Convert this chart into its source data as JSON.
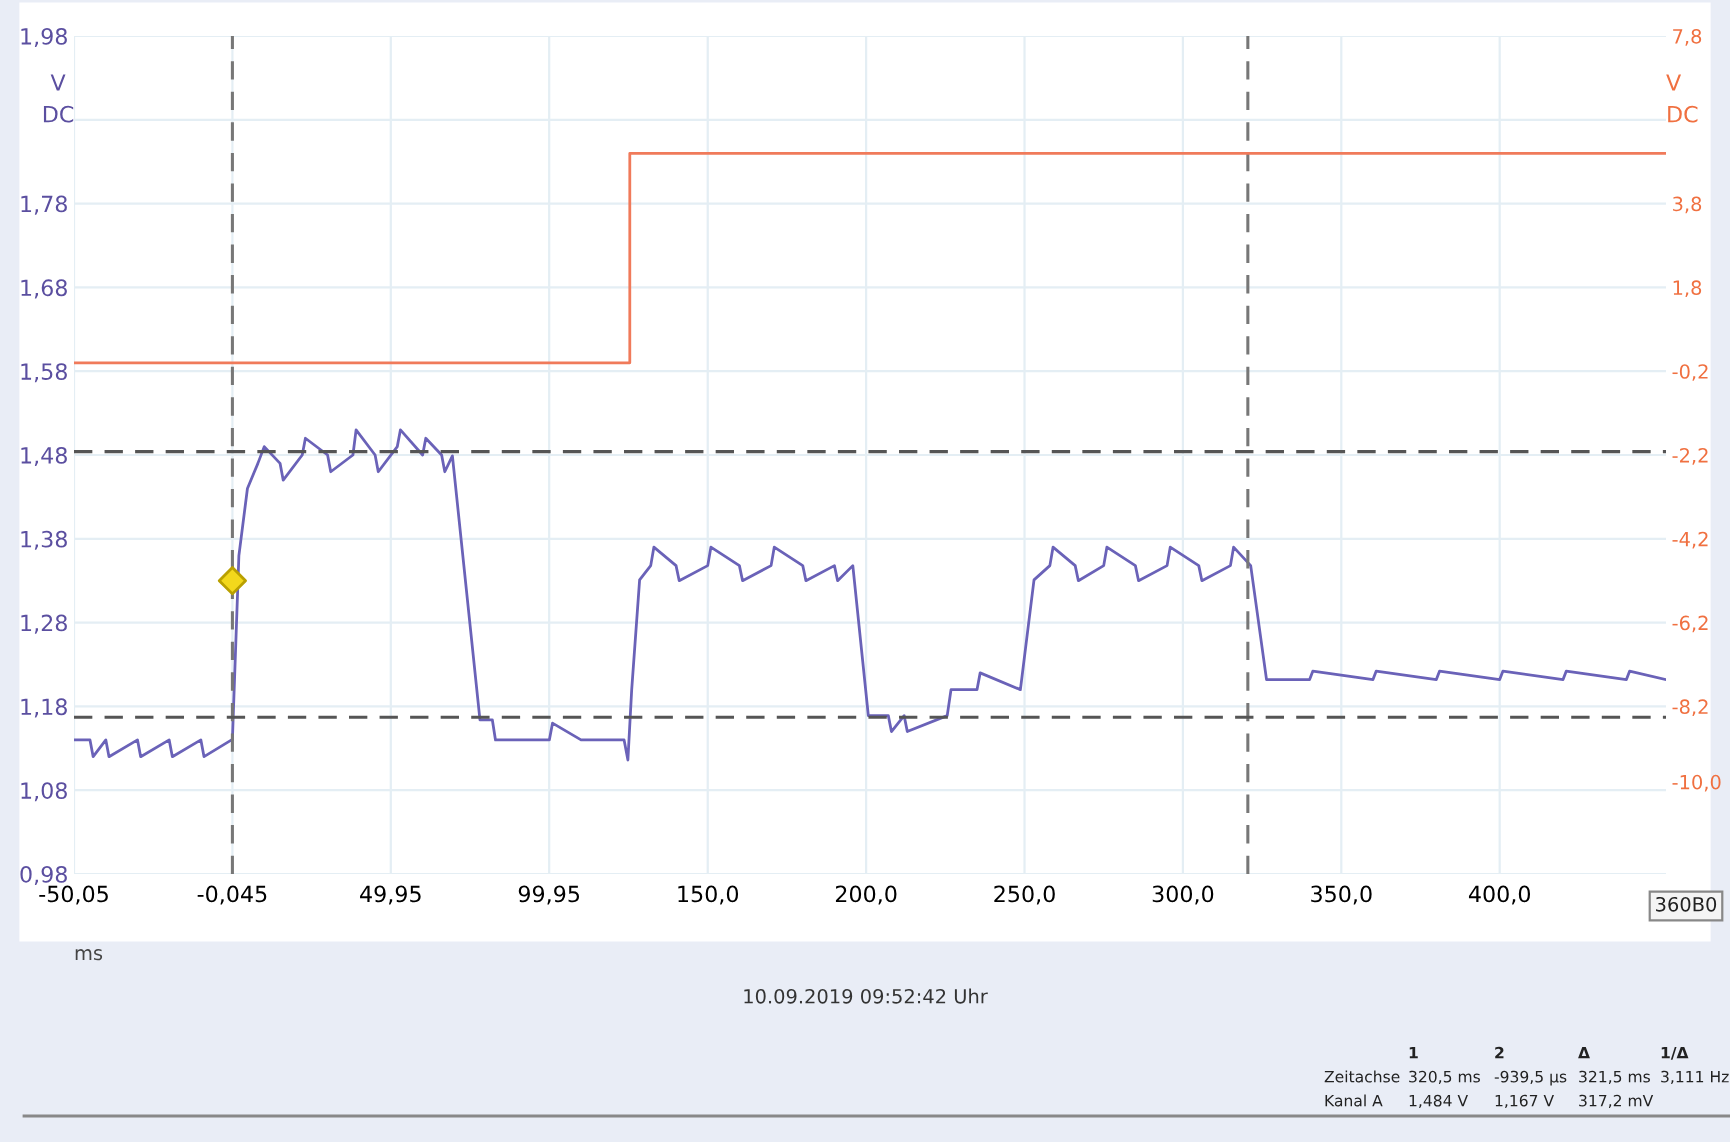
{
  "chart_data": {
    "type": "line",
    "xlabel": "ms",
    "ylabel": "V\nDC",
    "y2label": "V\nDC",
    "xlim": [
      -50.05,
      452.5
    ],
    "xticks": [
      {
        "value": -50.05,
        "label": "-50,05"
      },
      {
        "value": -0.045,
        "label": "-0,045"
      },
      {
        "value": 49.95,
        "label": "49,95"
      },
      {
        "value": 99.95,
        "label": "99,95"
      },
      {
        "value": 150.0,
        "label": "150,0"
      },
      {
        "value": 200.0,
        "label": "200,0"
      },
      {
        "value": 250.0,
        "label": "250,0"
      },
      {
        "value": 300.0,
        "label": "300,0"
      },
      {
        "value": 350.0,
        "label": "350,0"
      },
      {
        "value": 400.0,
        "label": "400,0"
      }
    ],
    "ylim": [
      0.98,
      1.98
    ],
    "yticks": [
      {
        "value": 0.98,
        "label": "0,98"
      },
      {
        "value": 1.08,
        "label": "1,08"
      },
      {
        "value": 1.18,
        "label": "1,18"
      },
      {
        "value": 1.28,
        "label": "1,28"
      },
      {
        "value": 1.38,
        "label": "1,38"
      },
      {
        "value": 1.48,
        "label": "1,48"
      },
      {
        "value": 1.58,
        "label": "1,58"
      },
      {
        "value": 1.68,
        "label": "1,68"
      },
      {
        "value": 1.78,
        "label": "1,78"
      },
      {
        "value": 1.88,
        "label": null
      },
      {
        "value": 1.98,
        "label": "1,98"
      }
    ],
    "y2lim": [
      -12.2,
      7.8
    ],
    "y2ticks": [
      {
        "value": -10.0,
        "label": "-10,0"
      },
      {
        "value": -8.2,
        "label": "-8,2"
      },
      {
        "value": -6.2,
        "label": "-6,2"
      },
      {
        "value": -4.2,
        "label": "-4,2"
      },
      {
        "value": -2.2,
        "label": "-2,2"
      },
      {
        "value": -0.2,
        "label": "-0,2"
      },
      {
        "value": 1.8,
        "label": "1,8"
      },
      {
        "value": 3.8,
        "label": "3,8"
      },
      {
        "value": 5.8,
        "label": null
      },
      {
        "value": 7.8,
        "label": "7,8"
      }
    ],
    "grid": true,
    "marker": "none",
    "line_style": "solid",
    "legend": false,
    "series": [
      {
        "color": "#6a62b8",
        "x": [
          -50.05,
          -45,
          -44,
          -40,
          -39,
          -30,
          -29,
          -20,
          -19,
          -10,
          -9,
          -0.3,
          -0.05,
          2,
          4.7,
          8,
          10,
          15,
          16,
          22,
          23,
          30,
          31,
          38,
          39,
          45,
          46,
          52,
          53,
          60,
          61,
          66,
          67,
          69.4,
          78.1,
          82,
          83,
          87.5,
          100,
          101,
          110,
          111,
          123.6,
          124.8,
          126,
          128.5,
          132,
          133,
          140,
          141,
          150,
          151,
          160,
          161,
          170,
          171,
          180,
          181,
          190,
          191,
          195.8,
          200.7,
          207,
          208,
          212,
          213,
          225.6,
          226.8,
          235,
          236,
          248.7,
          253,
          258,
          259,
          266,
          267,
          275,
          276,
          285,
          286,
          295,
          296,
          305,
          306,
          315,
          316,
          321.4,
          326.4,
          340,
          341,
          360,
          361,
          380,
          381,
          400,
          401,
          420,
          421,
          440,
          441,
          452.5
        ],
        "values": [
          1.14,
          1.14,
          1.12,
          1.14,
          1.12,
          1.14,
          1.12,
          1.14,
          1.12,
          1.14,
          1.12,
          1.14,
          1.14,
          1.36,
          1.44,
          1.47,
          1.49,
          1.47,
          1.45,
          1.48,
          1.5,
          1.48,
          1.46,
          1.48,
          1.51,
          1.48,
          1.46,
          1.49,
          1.51,
          1.48,
          1.5,
          1.48,
          1.46,
          1.479,
          1.164,
          1.164,
          1.14,
          1.14,
          1.14,
          1.16,
          1.14,
          1.14,
          1.14,
          1.116,
          1.2,
          1.331,
          1.348,
          1.37,
          1.348,
          1.33,
          1.348,
          1.37,
          1.348,
          1.33,
          1.348,
          1.37,
          1.348,
          1.33,
          1.348,
          1.33,
          1.348,
          1.169,
          1.169,
          1.15,
          1.169,
          1.15,
          1.169,
          1.2,
          1.2,
          1.22,
          1.2,
          1.331,
          1.348,
          1.37,
          1.348,
          1.33,
          1.348,
          1.37,
          1.348,
          1.33,
          1.348,
          1.37,
          1.348,
          1.33,
          1.348,
          1.37,
          1.348,
          1.212,
          1.212,
          1.222,
          1.212,
          1.222,
          1.212,
          1.222,
          1.212,
          1.222,
          1.212,
          1.222,
          1.212,
          1.222,
          1.212
        ]
      },
      {
        "type": "step",
        "axis": "y2",
        "color": "#f07a5a",
        "x": [
          -50.05,
          125.4,
          452.5
        ],
        "values": [
          0.0,
          5.0,
          5.0
        ]
      },
      {
        "type": "scatter",
        "marker": "diamond",
        "color": "#f2d81c",
        "x": [
          -0.045
        ],
        "values": [
          1.33
        ]
      }
    ],
    "ref_lines": [
      {
        "axis": "x",
        "value": -0.045,
        "color": "#777777",
        "line_style": "dashed"
      },
      {
        "axis": "x",
        "value": 320.5,
        "color": "#777777",
        "line_style": "dashed"
      },
      {
        "axis": "y",
        "value": 1.484,
        "color": "#555555",
        "line_style": "dashed"
      },
      {
        "axis": "y",
        "value": 1.167,
        "color": "#555555",
        "line_style": "dashed"
      }
    ],
    "annotations": [
      "10.09.2019 09:52:42 Uhr",
      "360B0",
      "1",
      "2",
      "Δ",
      "1/Δ",
      "Zeitachse",
      "320,5 ms",
      "-939,5 µs",
      "321,5 ms",
      "3,111 Hz",
      "Kanal A",
      "1,484 V",
      "1,167 V",
      "317,2 mV"
    ]
  }
}
